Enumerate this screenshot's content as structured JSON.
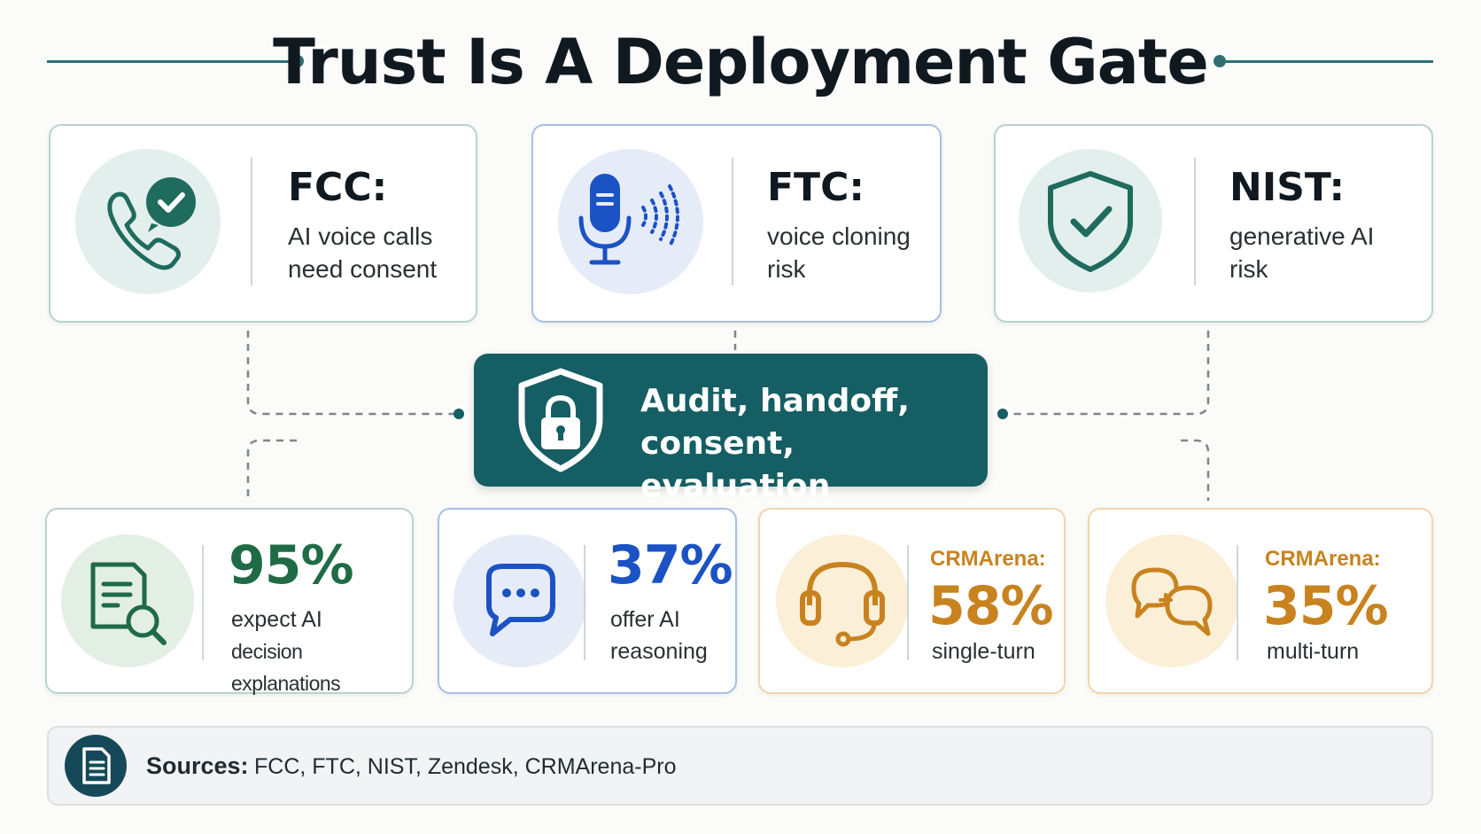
{
  "title": "Trust Is A Deployment Gate",
  "regulations": [
    {
      "title": "FCC:",
      "line1": "AI voice calls",
      "line2": "need consent",
      "icon": "phone-consent-icon"
    },
    {
      "title": "FTC:",
      "line1": "voice cloning",
      "line2": "risk",
      "icon": "microphone-icon"
    },
    {
      "title": "NIST:",
      "line1": "generative AI",
      "line2": "risk",
      "icon": "shield-check-icon"
    }
  ],
  "hub": {
    "line1": "Audit, handoff,",
    "line2": "consent, evaluation",
    "icon": "shield-lock-icon"
  },
  "stats": [
    {
      "value": "95%",
      "line1": "expect AI",
      "line2": "decision explanations",
      "icon": "document-search-icon"
    },
    {
      "value": "37%",
      "line1": "offer AI",
      "line2": "reasoning",
      "icon": "chat-bubble-icon"
    },
    {
      "label": "CRMArena:",
      "value": "58%",
      "line1": "single-turn",
      "icon": "headset-icon"
    },
    {
      "label": "CRMArena:",
      "value": "35%",
      "line1": "multi-turn",
      "icon": "conversation-icon"
    }
  ],
  "sources": {
    "label": "Sources:",
    "text": "FCC, FTC, NIST, Zendesk, CRMArena-Pro",
    "icon": "document-icon"
  },
  "colors": {
    "teal": "#155e63",
    "green": "#1f6b45",
    "blue": "#1b52c4",
    "amber": "#c8831e",
    "navy": "#15495a"
  }
}
